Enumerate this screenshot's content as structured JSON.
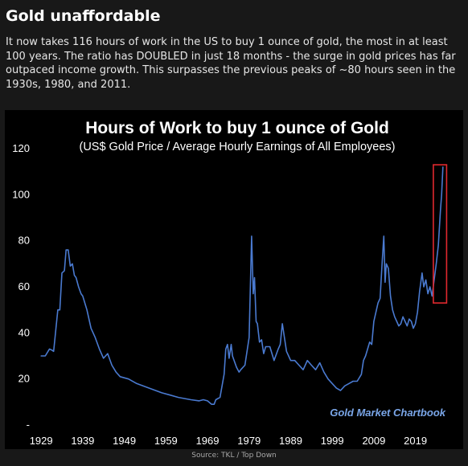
{
  "post": {
    "headline": "Gold unaffordable",
    "description": "It now takes 116 hours of work in the US to buy 1 ounce of gold, the most in at least 100 years. The ratio has DOUBLED in just 18 months - the surge in gold prices has far outpaced income growth. This surpasses the previous peaks of ~80 hours seen in the 1930s, 1980, and 2011.",
    "source": "Source: TKL / Top Down"
  },
  "chart_data": {
    "type": "line",
    "title": "Hours of Work to buy 1 ounce of Gold",
    "subtitle": "(US$ Gold Price / Average Hourly Earnings of All Employees)",
    "watermark": "Gold Market Chartbook",
    "xlabel": "",
    "ylabel": "",
    "xlim": [
      1928,
      2027
    ],
    "ylim": [
      0,
      120
    ],
    "x_ticks": [
      1929,
      1939,
      1949,
      1959,
      1969,
      1979,
      1989,
      1999,
      2009,
      2019
    ],
    "x_tick_labels": [
      "1929",
      "1939",
      "1949",
      "1959",
      "1969",
      "1979",
      "1989",
      "1999",
      "2009",
      "2019"
    ],
    "y_ticks": [
      0,
      20,
      40,
      60,
      80,
      100,
      120
    ],
    "y_tick_labels": [
      "-",
      "20",
      "40",
      "60",
      "80",
      "100",
      "120"
    ],
    "grid": false,
    "line_color": "#4a7ad0",
    "highlight_color": "#e0282e",
    "highlight_range": {
      "x": [
        2023.3,
        2026.5
      ],
      "y": [
        53,
        113
      ]
    },
    "series": [
      {
        "x": [
          1929,
          1930,
          1931,
          1931.6,
          1932,
          1933,
          1933.5,
          1934,
          1934.6,
          1935,
          1935.5,
          1936,
          1936.5,
          1937,
          1937.4,
          1938,
          1938.6,
          1939,
          1940,
          1941,
          1942,
          1943,
          1944,
          1945,
          1946,
          1947,
          1948,
          1950,
          1952,
          1955,
          1958,
          1960,
          1962,
          1965,
          1967,
          1968,
          1969,
          1970,
          1970.6,
          1971,
          1972,
          1973,
          1973.4,
          1973.8,
          1974.2,
          1974.7,
          1975,
          1976,
          1976.6,
          1977,
          1978,
          1979,
          1979.6,
          1980,
          1980.3,
          1980.7,
          1981,
          1981.5,
          1982,
          1982.5,
          1983,
          1984,
          1985,
          1986,
          1986.5,
          1987,
          1987.5,
          1988,
          1989,
          1990,
          1991,
          1992,
          1993,
          1994,
          1995,
          1996,
          1997,
          1998,
          1999,
          2000,
          2001,
          2002,
          2003,
          2004,
          2005,
          2006,
          2006.5,
          2007,
          2008,
          2008.5,
          2009,
          2010,
          2010.5,
          2011,
          2011.4,
          2011.7,
          2012,
          2012.5,
          2013,
          2013.5,
          2014,
          2014.5,
          2015,
          2015.5,
          2016,
          2016.5,
          2017,
          2017.5,
          2018,
          2018.5,
          2019,
          2019.5,
          2020,
          2020.6,
          2021,
          2021.5,
          2022,
          2022.5,
          2023,
          2023.5,
          2024,
          2024.5,
          2025,
          2025.3,
          2025.6
        ],
        "y": [
          30,
          30,
          33,
          32.5,
          32,
          50,
          50,
          66,
          67,
          76,
          76,
          69,
          70,
          65,
          64,
          60,
          57,
          56,
          50,
          42,
          38,
          33,
          29,
          31,
          26,
          23,
          21,
          20,
          18,
          16,
          14,
          13,
          12,
          11,
          10.5,
          11,
          10.5,
          9,
          9,
          11,
          12,
          22,
          33,
          35,
          29,
          35,
          30,
          25,
          23,
          24,
          26,
          38,
          82,
          57,
          64,
          45,
          44,
          36,
          37,
          31,
          34,
          34,
          28,
          33,
          35,
          44,
          38,
          32,
          28,
          28,
          26,
          24,
          28,
          26,
          24,
          27,
          23,
          20,
          18,
          16,
          15,
          17,
          18,
          19,
          19,
          22,
          28,
          30,
          36,
          35,
          45,
          53,
          55,
          71,
          82,
          62,
          70,
          68,
          56,
          50,
          47,
          45,
          43,
          44,
          47,
          45,
          43,
          46,
          45,
          42,
          44,
          49,
          58,
          66,
          60,
          63,
          57,
          60,
          56,
          63,
          70,
          78,
          93,
          100,
          112
        ]
      }
    ]
  }
}
